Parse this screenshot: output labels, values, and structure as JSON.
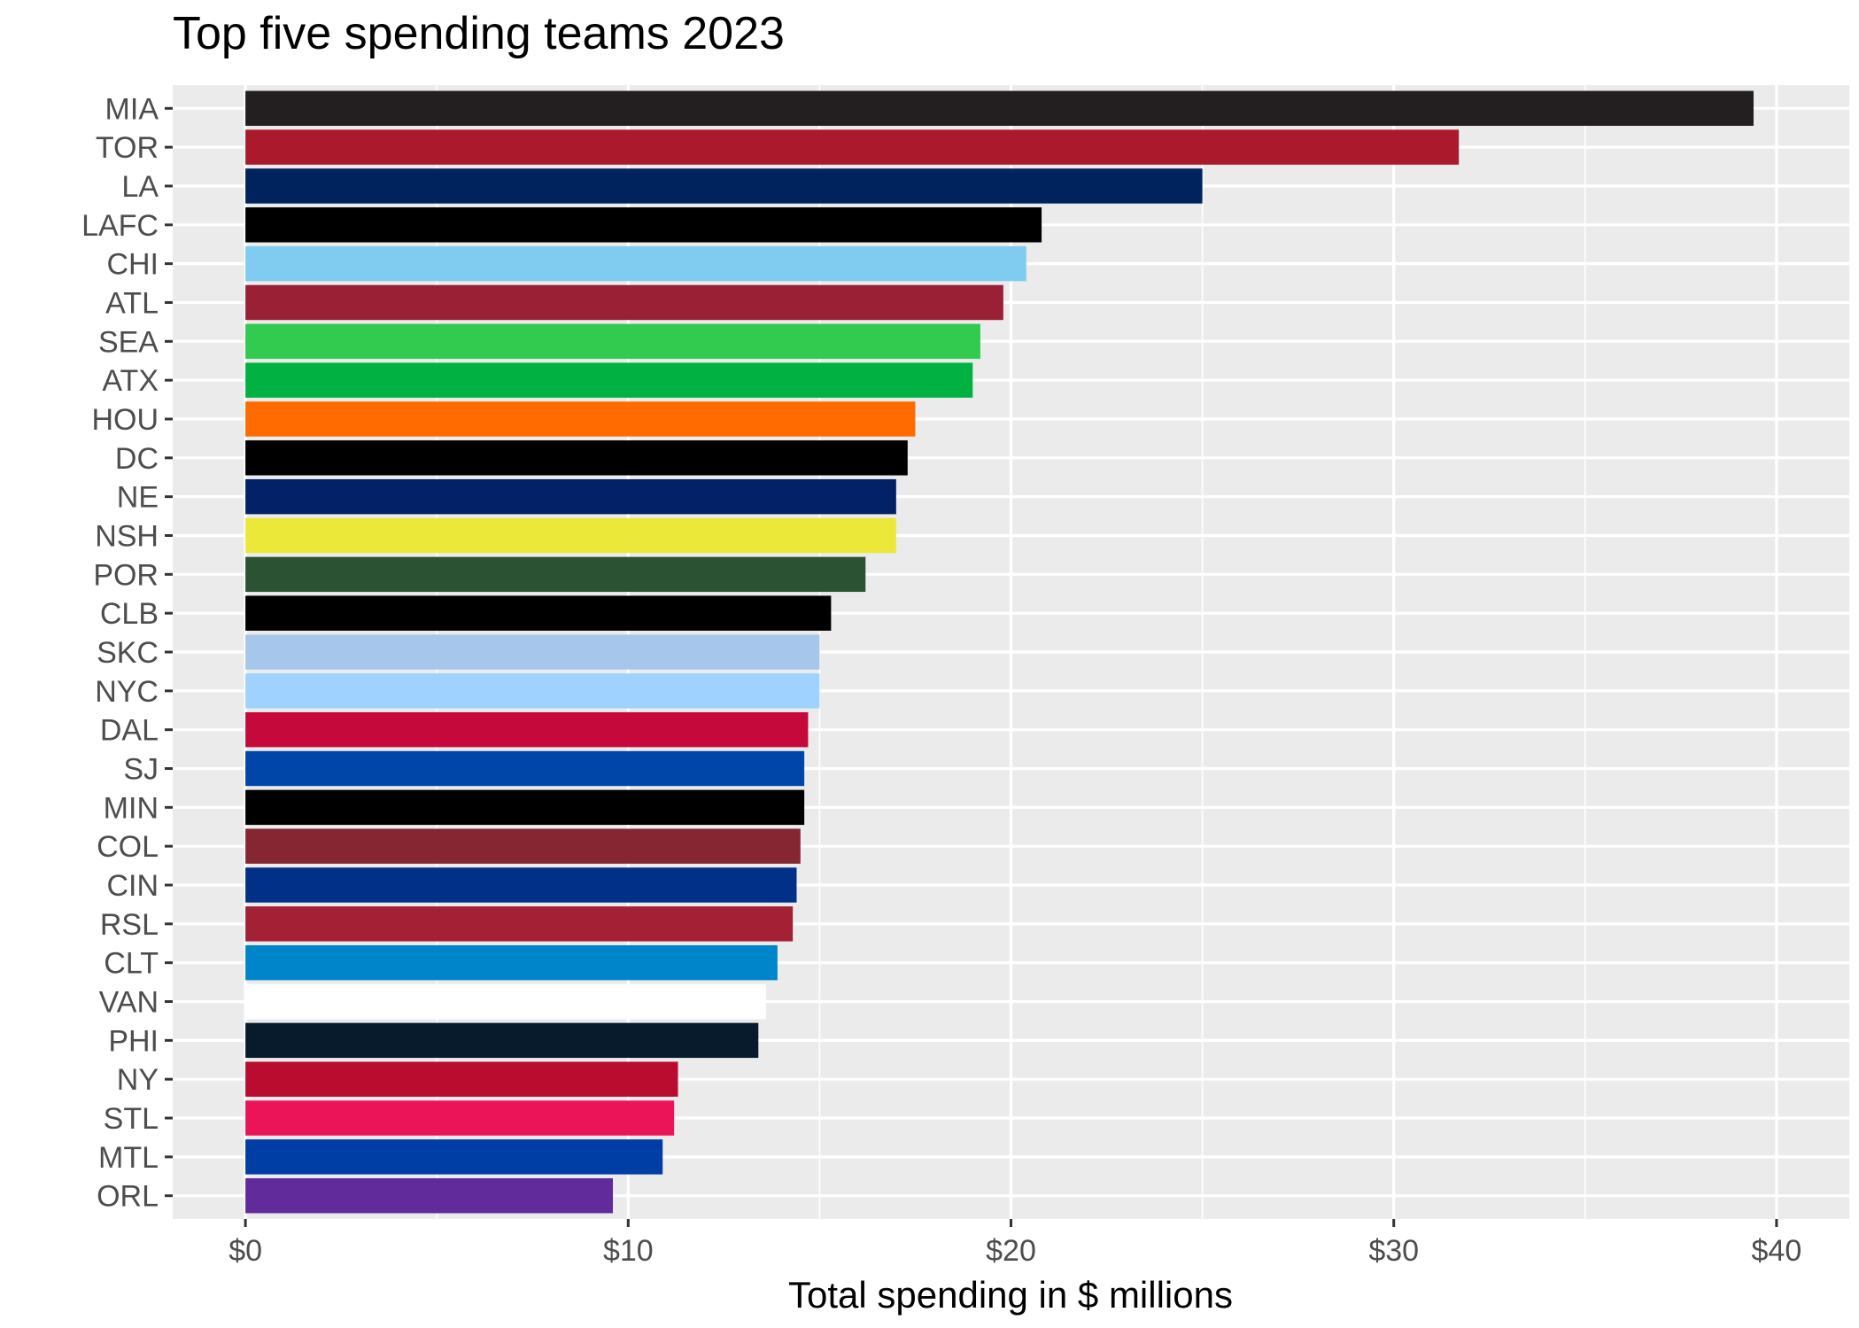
{
  "chart_data": {
    "type": "bar",
    "orientation": "horizontal",
    "title": "Top five spending teams 2023",
    "xlabel": "Total spending in $ millions",
    "ylabel": "",
    "xlim": [
      -1.9,
      41.9
    ],
    "x_ticks": [
      0,
      10,
      20,
      30,
      40
    ],
    "x_tick_labels": [
      "$0",
      "$10",
      "$20",
      "$30",
      "$40"
    ],
    "grid": true,
    "panel_background": "#EBEBEB",
    "categories": [
      "MIA",
      "TOR",
      "LA",
      "LAFC",
      "CHI",
      "ATL",
      "SEA",
      "ATX",
      "HOU",
      "DC",
      "NE",
      "NSH",
      "POR",
      "CLB",
      "SKC",
      "NYC",
      "DAL",
      "SJ",
      "MIN",
      "COL",
      "CIN",
      "RSL",
      "CLT",
      "VAN",
      "PHI",
      "NY",
      "STL",
      "MTL",
      "ORL"
    ],
    "values": [
      39.4,
      31.7,
      25.0,
      20.8,
      20.4,
      19.8,
      19.2,
      19.0,
      17.5,
      17.3,
      17.0,
      17.0,
      16.2,
      15.3,
      15.0,
      15.0,
      14.7,
      14.6,
      14.6,
      14.5,
      14.4,
      14.3,
      13.9,
      13.6,
      13.4,
      11.3,
      11.2,
      10.9,
      9.6
    ],
    "colors": [
      "#231F20",
      "#AA1A2C",
      "#00235D",
      "#000000",
      "#7FCCF0",
      "#9A2036",
      "#32CB50",
      "#01B141",
      "#FF6B00",
      "#000000",
      "#022166",
      "#ECE83A",
      "#2C5234",
      "#000000",
      "#A7C6EC",
      "#9FD2FF",
      "#C6093B",
      "#0046A9",
      "#000000",
      "#862633",
      "#003087",
      "#A32035",
      "#0085CA",
      "#FFFFFF",
      "#071B2C",
      "#BA0C2F",
      "#EC1458",
      "#003DA5",
      "#612B9B"
    ]
  }
}
